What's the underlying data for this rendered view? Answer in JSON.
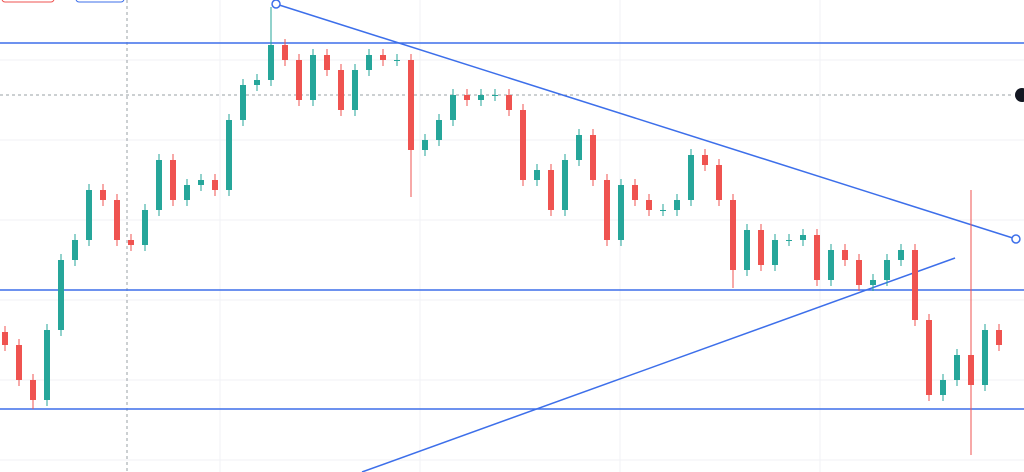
{
  "chart_data": {
    "type": "candlestick",
    "open": [
      140,
      127,
      92,
      72,
      142,
      212,
      232,
      282,
      272,
      232,
      227,
      262,
      312,
      272,
      287,
      292,
      282,
      352,
      387,
      392,
      427,
      412,
      372,
      417,
      402,
      362,
      402,
      417,
      412,
      412,
      322,
      332,
      352,
      377,
      372,
      377,
      377,
      362,
      292,
      302,
      262,
      312,
      337,
      292,
      232,
      287,
      272,
      262,
      262,
      272,
      317,
      307,
      272,
      202,
      242,
      207,
      232,
      232,
      237,
      192,
      222,
      212,
      187,
      192,
      212,
      222,
      152,
      77,
      92,
      117,
      87,
      142
    ],
    "high": [
      146,
      133,
      98,
      148,
      218,
      238,
      288,
      288,
      278,
      238,
      268,
      318,
      318,
      293,
      298,
      298,
      358,
      393,
      398,
      465,
      433,
      418,
      423,
      423,
      408,
      408,
      423,
      423,
      418,
      418,
      338,
      358,
      383,
      383,
      383,
      383,
      383,
      368,
      308,
      308,
      318,
      343,
      343,
      298,
      293,
      293,
      278,
      268,
      278,
      323,
      323,
      313,
      278,
      248,
      248,
      238,
      238,
      243,
      243,
      228,
      228,
      218,
      198,
      218,
      228,
      228,
      158,
      98,
      123,
      282,
      148,
      148
    ],
    "low": [
      121,
      86,
      63,
      66,
      136,
      206,
      226,
      266,
      226,
      221,
      221,
      256,
      266,
      266,
      281,
      276,
      276,
      346,
      381,
      386,
      406,
      366,
      366,
      396,
      356,
      356,
      396,
      406,
      406,
      275,
      316,
      326,
      346,
      366,
      366,
      371,
      356,
      286,
      286,
      256,
      256,
      306,
      286,
      226,
      226,
      266,
      256,
      256,
      256,
      266,
      301,
      266,
      184,
      196,
      201,
      201,
      226,
      226,
      186,
      186,
      206,
      181,
      181,
      186,
      206,
      146,
      71,
      71,
      86,
      17,
      81,
      121
    ],
    "close": [
      127,
      92,
      72,
      142,
      212,
      232,
      282,
      272,
      232,
      227,
      262,
      312,
      272,
      287,
      292,
      282,
      352,
      387,
      392,
      427,
      412,
      372,
      417,
      402,
      362,
      402,
      417,
      412,
      412,
      322,
      332,
      352,
      377,
      372,
      377,
      377,
      362,
      292,
      302,
      262,
      312,
      337,
      292,
      232,
      287,
      272,
      262,
      262,
      272,
      317,
      307,
      272,
      202,
      242,
      207,
      232,
      232,
      237,
      192,
      222,
      212,
      187,
      192,
      212,
      222,
      152,
      77,
      92,
      117,
      87,
      142,
      127
    ],
    "up_color": "#26a69a",
    "down_color": "#ef5350",
    "ylim": [
      0,
      472
    ],
    "levels": [
      429,
      182,
      63
    ],
    "level_color": "#3d6fea",
    "trend_lines": [
      {
        "x": [
          19.36,
          72.21
        ],
        "values": [
          468,
          233
        ]
      },
      {
        "x": [
          25.5,
          67.86
        ],
        "values": [
          0,
          214
        ]
      }
    ]
  }
}
